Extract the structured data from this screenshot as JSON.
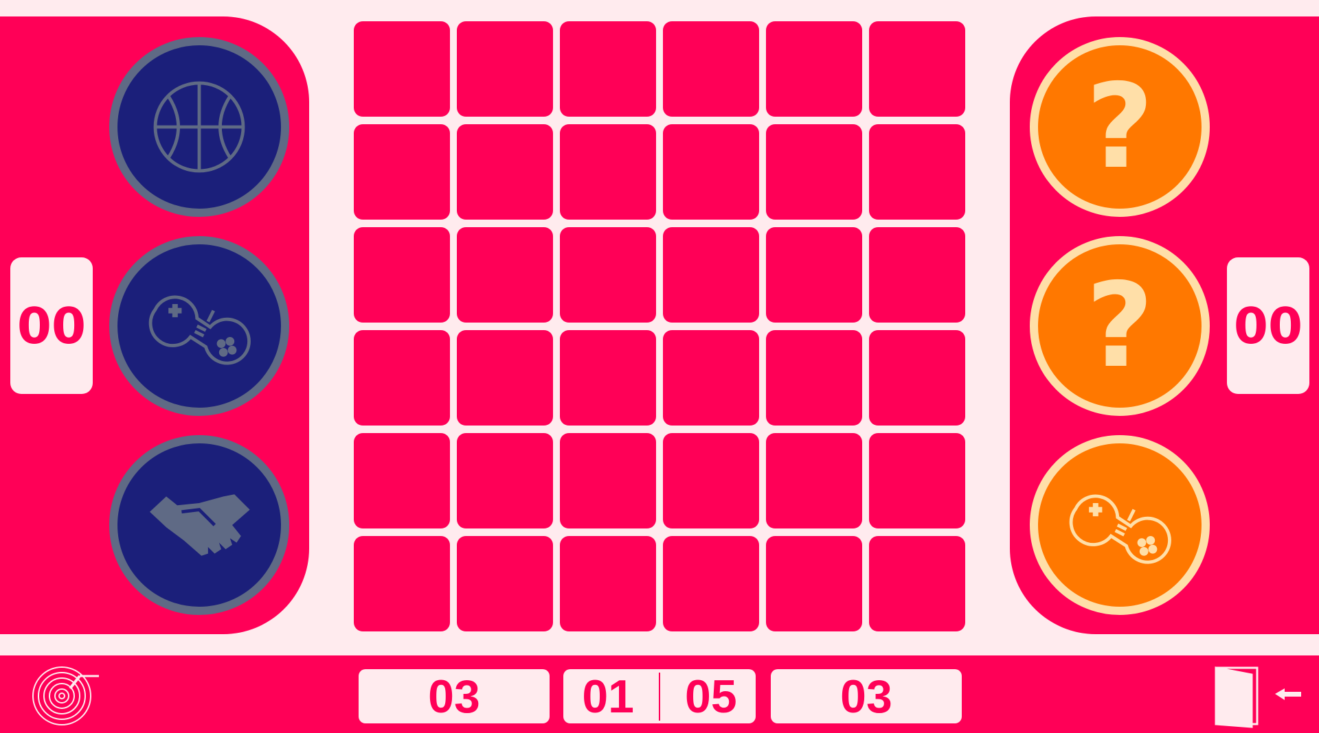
{
  "colors": {
    "primary": "#FF0057",
    "background": "#FFEBEE",
    "player1_disc": "#1B1F7A",
    "player1_ring": "#5F6A85",
    "player2_disc": "#FF7800",
    "player2_ring": "#FFDFA8"
  },
  "player1": {
    "score": "00",
    "tokens": [
      {
        "icon": "basketball-icon"
      },
      {
        "icon": "gamepad-icon"
      },
      {
        "icon": "handshake-icon"
      }
    ]
  },
  "player2": {
    "score": "00",
    "tokens": [
      {
        "icon": "question-icon",
        "label": "?"
      },
      {
        "icon": "question-icon",
        "label": "?"
      },
      {
        "icon": "gamepad-icon"
      }
    ]
  },
  "status_bar": {
    "left_counter": "03",
    "center_left": "01",
    "center_right": "05",
    "right_counter": "03",
    "music_icon": "vinyl-record-icon",
    "exit_icon": "exit-door-icon"
  }
}
